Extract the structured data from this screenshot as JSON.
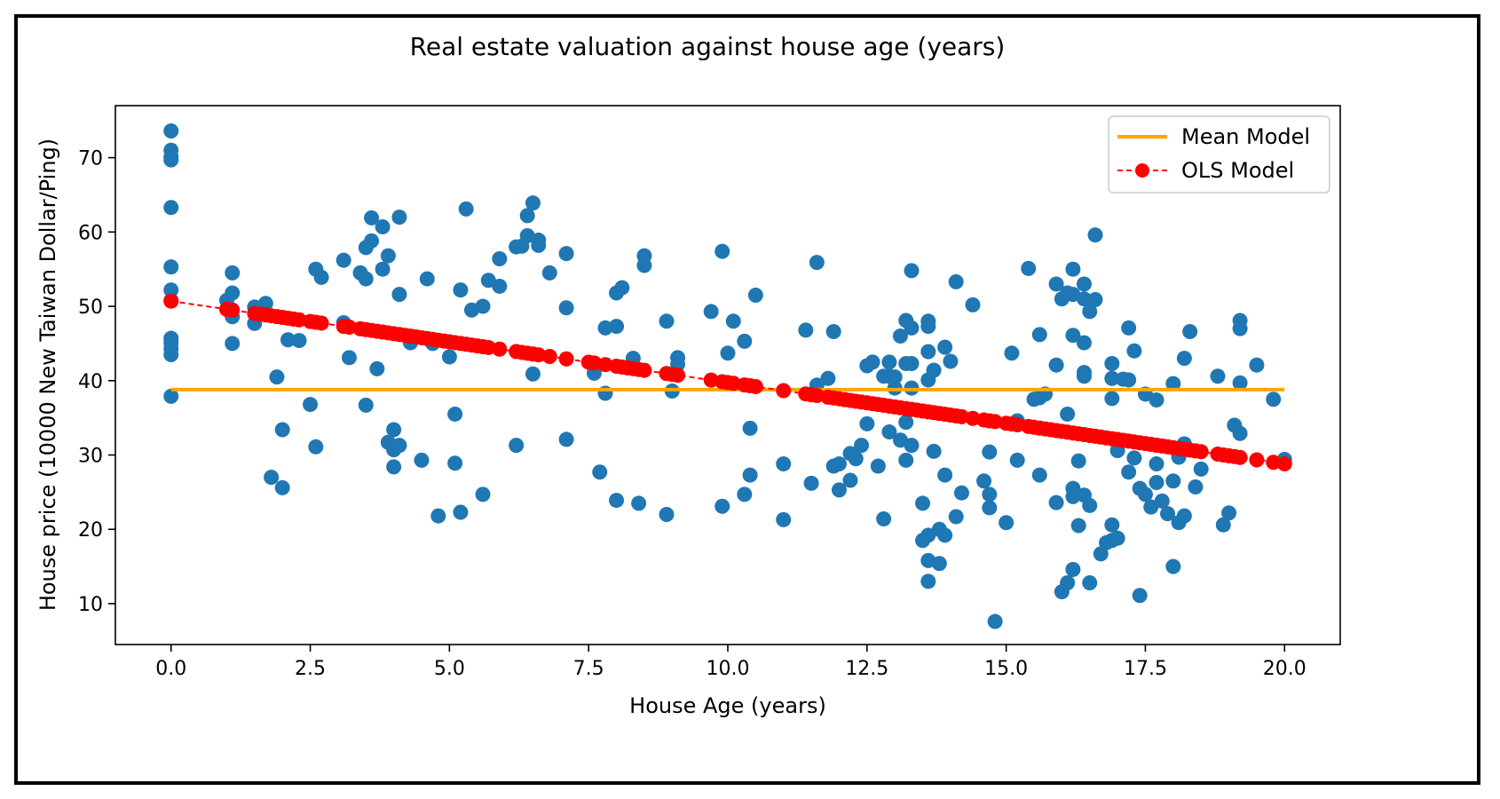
{
  "chart_data": {
    "type": "scatter",
    "title": "Real estate valuation against house age (years)",
    "xlabel": "House Age (years)",
    "ylabel": "House price (10000 New Taiwan Dollar/Ping)",
    "xlim": [
      -1.0,
      21.0
    ],
    "ylim": [
      4.5,
      77.0
    ],
    "x_ticks": [
      0.0,
      2.5,
      5.0,
      7.5,
      10.0,
      12.5,
      15.0,
      17.5,
      20.0
    ],
    "x_tick_labels": [
      "0.0",
      "2.5",
      "5.0",
      "7.5",
      "10.0",
      "12.5",
      "15.0",
      "17.5",
      "20.0"
    ],
    "y_ticks": [
      10,
      20,
      30,
      40,
      50,
      60,
      70
    ],
    "y_tick_labels": [
      "10",
      "20",
      "30",
      "40",
      "50",
      "60",
      "70"
    ],
    "grid": false,
    "legend": {
      "position": "top-right",
      "entries": [
        {
          "label": "Mean Model",
          "color": "#ffa500",
          "style": "solid-line"
        },
        {
          "label": "OLS Model",
          "color": "#ff0000",
          "style": "dashed-line-with-markers"
        }
      ]
    },
    "series": [
      {
        "type": "scatter",
        "color": "#1f77b4",
        "points": [
          [
            0,
            73.6
          ],
          [
            0,
            71.0
          ],
          [
            0,
            70.1
          ],
          [
            0,
            69.7
          ],
          [
            0,
            63.3
          ],
          [
            0,
            55.3
          ],
          [
            0,
            52.2
          ],
          [
            0,
            50.8
          ],
          [
            0,
            45.7
          ],
          [
            0,
            45.1
          ],
          [
            0,
            44.3
          ],
          [
            0,
            43.5
          ],
          [
            0,
            37.9
          ],
          [
            1.0,
            50.8
          ],
          [
            1.1,
            54.5
          ],
          [
            1.1,
            51.8
          ],
          [
            1.1,
            48.6
          ],
          [
            1.1,
            45.0
          ],
          [
            1.5,
            49.9
          ],
          [
            1.5,
            47.7
          ],
          [
            1.7,
            50.4
          ],
          [
            1.9,
            40.5
          ],
          [
            1.8,
            27.0
          ],
          [
            2.0,
            33.4
          ],
          [
            2.0,
            25.6
          ],
          [
            2.1,
            45.5
          ],
          [
            2.3,
            45.4
          ],
          [
            2.5,
            36.8
          ],
          [
            2.6,
            55.0
          ],
          [
            2.7,
            53.9
          ],
          [
            2.6,
            31.1
          ],
          [
            3.1,
            56.2
          ],
          [
            3.1,
            47.8
          ],
          [
            3.2,
            43.1
          ],
          [
            3.4,
            54.5
          ],
          [
            3.5,
            57.9
          ],
          [
            3.6,
            58.8
          ],
          [
            3.6,
            61.9
          ],
          [
            3.5,
            53.7
          ],
          [
            3.5,
            36.7
          ],
          [
            3.7,
            41.6
          ],
          [
            3.8,
            60.7
          ],
          [
            3.8,
            55.0
          ],
          [
            3.9,
            56.8
          ],
          [
            3.9,
            31.7
          ],
          [
            4.0,
            33.4
          ],
          [
            4.0,
            30.7
          ],
          [
            4.0,
            28.4
          ],
          [
            4.1,
            62.0
          ],
          [
            4.1,
            51.6
          ],
          [
            4.1,
            31.3
          ],
          [
            4.3,
            45.1
          ],
          [
            4.5,
            29.3
          ],
          [
            4.6,
            53.7
          ],
          [
            4.7,
            45.0
          ],
          [
            4.8,
            21.8
          ],
          [
            5.0,
            43.2
          ],
          [
            5.1,
            35.5
          ],
          [
            5.1,
            28.9
          ],
          [
            5.2,
            52.2
          ],
          [
            5.2,
            22.3
          ],
          [
            5.3,
            63.1
          ],
          [
            5.4,
            49.5
          ],
          [
            5.6,
            50.0
          ],
          [
            5.6,
            24.7
          ],
          [
            5.7,
            53.5
          ],
          [
            5.9,
            52.7
          ],
          [
            5.9,
            56.4
          ],
          [
            6.2,
            58.0
          ],
          [
            6.2,
            31.3
          ],
          [
            6.3,
            58.1
          ],
          [
            6.4,
            62.2
          ],
          [
            6.4,
            59.5
          ],
          [
            6.5,
            63.9
          ],
          [
            6.6,
            58.2
          ],
          [
            6.6,
            58.9
          ],
          [
            6.5,
            40.9
          ],
          [
            6.8,
            54.5
          ],
          [
            7.1,
            57.1
          ],
          [
            7.1,
            49.8
          ],
          [
            7.1,
            32.1
          ],
          [
            7.6,
            41.0
          ],
          [
            7.7,
            27.7
          ],
          [
            7.8,
            47.1
          ],
          [
            7.8,
            38.3
          ],
          [
            8.0,
            51.8
          ],
          [
            8.0,
            47.3
          ],
          [
            8.0,
            23.9
          ],
          [
            8.1,
            52.5
          ],
          [
            8.3,
            43.0
          ],
          [
            8.4,
            23.5
          ],
          [
            8.5,
            56.8
          ],
          [
            8.5,
            55.5
          ],
          [
            8.9,
            48.0
          ],
          [
            8.9,
            22.0
          ],
          [
            9.0,
            38.6
          ],
          [
            9.1,
            43.1
          ],
          [
            9.1,
            42.2
          ],
          [
            9.7,
            49.3
          ],
          [
            9.9,
            57.4
          ],
          [
            9.9,
            23.1
          ],
          [
            10.0,
            43.7
          ],
          [
            10.1,
            48.0
          ],
          [
            10.3,
            45.3
          ],
          [
            10.3,
            24.7
          ],
          [
            10.4,
            33.6
          ],
          [
            10.4,
            27.3
          ],
          [
            10.5,
            51.5
          ],
          [
            11.0,
            28.8
          ],
          [
            11.0,
            21.3
          ],
          [
            11.4,
            46.8
          ],
          [
            11.5,
            26.2
          ],
          [
            11.6,
            55.9
          ],
          [
            11.6,
            39.4
          ],
          [
            11.8,
            40.3
          ],
          [
            11.9,
            46.6
          ],
          [
            11.9,
            28.5
          ],
          [
            12.0,
            28.8
          ],
          [
            12.0,
            25.3
          ],
          [
            12.2,
            26.6
          ],
          [
            12.2,
            30.2
          ],
          [
            12.3,
            29.5
          ],
          [
            12.4,
            31.3
          ],
          [
            12.5,
            42.0
          ],
          [
            12.5,
            34.2
          ],
          [
            12.6,
            42.5
          ],
          [
            12.7,
            28.5
          ],
          [
            12.8,
            40.6
          ],
          [
            12.8,
            21.4
          ],
          [
            12.9,
            42.5
          ],
          [
            12.9,
            40.6
          ],
          [
            12.9,
            33.1
          ],
          [
            13.0,
            39.0
          ],
          [
            13.0,
            40.5
          ],
          [
            13.1,
            46.0
          ],
          [
            13.1,
            32.0
          ],
          [
            13.2,
            48.1
          ],
          [
            13.2,
            42.3
          ],
          [
            13.2,
            34.4
          ],
          [
            13.2,
            29.3
          ],
          [
            13.3,
            54.8
          ],
          [
            13.3,
            47.1
          ],
          [
            13.3,
            42.3
          ],
          [
            13.3,
            31.3
          ],
          [
            13.3,
            39.0
          ],
          [
            13.5,
            23.5
          ],
          [
            13.5,
            18.5
          ],
          [
            13.6,
            48.0
          ],
          [
            13.6,
            47.3
          ],
          [
            13.6,
            43.9
          ],
          [
            13.6,
            40.1
          ],
          [
            13.6,
            19.2
          ],
          [
            13.6,
            15.8
          ],
          [
            13.6,
            13.0
          ],
          [
            13.7,
            41.4
          ],
          [
            13.7,
            30.5
          ],
          [
            13.8,
            20.0
          ],
          [
            13.8,
            15.4
          ],
          [
            13.9,
            44.5
          ],
          [
            13.9,
            27.3
          ],
          [
            13.9,
            19.2
          ],
          [
            14.0,
            42.6
          ],
          [
            14.1,
            53.3
          ],
          [
            14.1,
            21.7
          ],
          [
            14.2,
            24.9
          ],
          [
            14.4,
            50.2
          ],
          [
            14.6,
            26.5
          ],
          [
            14.7,
            30.4
          ],
          [
            14.7,
            24.7
          ],
          [
            14.7,
            22.9
          ],
          [
            14.8,
            7.6
          ],
          [
            15.0,
            20.9
          ],
          [
            15.1,
            43.7
          ],
          [
            15.2,
            34.6
          ],
          [
            15.2,
            29.3
          ],
          [
            15.4,
            55.1
          ],
          [
            15.5,
            37.5
          ],
          [
            15.6,
            46.2
          ],
          [
            15.6,
            37.7
          ],
          [
            15.6,
            27.3
          ],
          [
            15.7,
            38.2
          ],
          [
            15.9,
            53.0
          ],
          [
            15.9,
            42.1
          ],
          [
            15.9,
            23.6
          ],
          [
            16.0,
            51.0
          ],
          [
            16.0,
            11.6
          ],
          [
            16.1,
            51.8
          ],
          [
            16.1,
            35.5
          ],
          [
            16.1,
            12.8
          ],
          [
            16.2,
            55.0
          ],
          [
            16.2,
            51.6
          ],
          [
            16.2,
            46.1
          ],
          [
            16.2,
            25.5
          ],
          [
            16.2,
            24.4
          ],
          [
            16.2,
            14.6
          ],
          [
            16.3,
            29.2
          ],
          [
            16.3,
            20.5
          ],
          [
            16.4,
            53.0
          ],
          [
            16.4,
            51.0
          ],
          [
            16.4,
            45.1
          ],
          [
            16.4,
            41.1
          ],
          [
            16.4,
            40.6
          ],
          [
            16.4,
            24.6
          ],
          [
            16.5,
            49.3
          ],
          [
            16.5,
            23.2
          ],
          [
            16.5,
            12.8
          ],
          [
            16.6,
            59.6
          ],
          [
            16.6,
            50.9
          ],
          [
            16.7,
            16.7
          ],
          [
            16.8,
            18.2
          ],
          [
            16.9,
            42.3
          ],
          [
            16.9,
            40.3
          ],
          [
            16.9,
            37.6
          ],
          [
            16.9,
            20.6
          ],
          [
            16.9,
            18.5
          ],
          [
            17.0,
            30.6
          ],
          [
            17.0,
            18.8
          ],
          [
            17.1,
            40.2
          ],
          [
            17.2,
            47.1
          ],
          [
            17.2,
            40.1
          ],
          [
            17.2,
            27.7
          ],
          [
            17.3,
            44.0
          ],
          [
            17.3,
            29.6
          ],
          [
            17.4,
            25.5
          ],
          [
            17.4,
            11.1
          ],
          [
            17.5,
            38.2
          ],
          [
            17.5,
            24.7
          ],
          [
            17.6,
            23.0
          ],
          [
            17.7,
            37.4
          ],
          [
            17.7,
            28.8
          ],
          [
            17.7,
            26.3
          ],
          [
            17.8,
            23.8
          ],
          [
            17.9,
            22.1
          ],
          [
            18.0,
            39.6
          ],
          [
            18.0,
            26.5
          ],
          [
            18.0,
            15.0
          ],
          [
            18.1,
            29.7
          ],
          [
            18.1,
            20.9
          ],
          [
            18.2,
            43.0
          ],
          [
            18.2,
            31.5
          ],
          [
            18.2,
            21.8
          ],
          [
            18.3,
            46.6
          ],
          [
            18.4,
            25.7
          ],
          [
            18.5,
            28.1
          ],
          [
            18.8,
            40.6
          ],
          [
            18.9,
            20.6
          ],
          [
            19.0,
            22.2
          ],
          [
            19.1,
            34.0
          ],
          [
            19.2,
            48.1
          ],
          [
            19.2,
            47.0
          ],
          [
            19.2,
            39.7
          ],
          [
            19.2,
            32.9
          ],
          [
            19.5,
            42.1
          ],
          [
            19.8,
            37.5
          ],
          [
            20.0,
            29.4
          ]
        ]
      },
      {
        "type": "line",
        "name": "Mean Model",
        "color": "#ffa500",
        "x": [
          0.0,
          20.0
        ],
        "y": [
          38.8,
          38.8
        ]
      },
      {
        "type": "line",
        "name": "OLS Model",
        "color": "#ff0000",
        "line_style": "dashed",
        "intercept": 50.7,
        "slope": -1.095,
        "x": [
          0,
          1.0,
          1.1,
          1.5,
          1.6,
          1.7,
          1.8,
          1.9,
          2.0,
          2.1,
          2.2,
          2.3,
          2.5,
          2.6,
          2.7,
          3.1,
          3.2,
          3.4,
          3.5,
          3.6,
          3.7,
          3.8,
          3.9,
          4.0,
          4.1,
          4.2,
          4.3,
          4.4,
          4.5,
          4.6,
          4.7,
          4.8,
          4.9,
          5.0,
          5.1,
          5.2,
          5.3,
          5.4,
          5.5,
          5.6,
          5.7,
          5.9,
          6.2,
          6.3,
          6.4,
          6.5,
          6.6,
          6.8,
          7.1,
          7.5,
          7.6,
          7.8,
          8.0,
          8.1,
          8.2,
          8.3,
          8.4,
          8.5,
          8.9,
          9.0,
          9.1,
          9.7,
          9.9,
          10.0,
          10.1,
          10.3,
          10.4,
          10.5,
          11.0,
          11.4,
          11.5,
          11.6,
          11.8,
          11.9,
          12.0,
          12.1,
          12.2,
          12.3,
          12.4,
          12.5,
          12.6,
          12.7,
          12.8,
          12.9,
          13.0,
          13.1,
          13.2,
          13.3,
          13.4,
          13.5,
          13.6,
          13.7,
          13.8,
          13.9,
          14.0,
          14.1,
          14.2,
          14.4,
          14.6,
          14.7,
          14.8,
          15.0,
          15.1,
          15.2,
          15.4,
          15.5,
          15.6,
          15.7,
          15.8,
          15.9,
          16.0,
          16.1,
          16.2,
          16.3,
          16.4,
          16.5,
          16.6,
          16.7,
          16.8,
          16.9,
          17.0,
          17.1,
          17.2,
          17.3,
          17.4,
          17.5,
          17.6,
          17.7,
          17.8,
          17.9,
          18.0,
          18.1,
          18.2,
          18.3,
          18.4,
          18.5,
          18.8,
          18.9,
          19.0,
          19.1,
          19.2,
          19.5,
          19.8,
          20.0
        ]
      }
    ]
  }
}
